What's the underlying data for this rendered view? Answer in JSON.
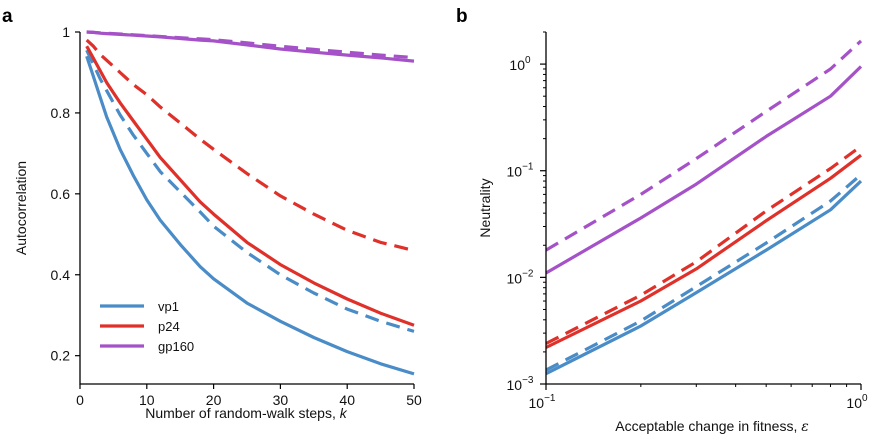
{
  "colors": {
    "vp1": "#4a8cc7",
    "p24": "#e0302a",
    "gp160": "#a552c8"
  },
  "chart_data": [
    {
      "panel": "a",
      "type": "line",
      "xlabel": "Number of random-walk steps, ",
      "xlabel_italic": "k",
      "ylabel": "Autocorrelation",
      "xlim": [
        0,
        50
      ],
      "ylim": [
        0.13,
        1.0
      ],
      "xticks": [
        0,
        10,
        20,
        30,
        40,
        50
      ],
      "xtick_labels": [
        "0",
        "10",
        "20",
        "30",
        "40",
        "50"
      ],
      "yticks": [
        0.2,
        0.4,
        0.6,
        0.8,
        1.0
      ],
      "ytick_labels": [
        "0.2",
        "0.4",
        "0.6",
        "0.8",
        "1"
      ],
      "legend_position": "bottom-left",
      "x": [
        1,
        2,
        3,
        4,
        5,
        6,
        8,
        10,
        12,
        15,
        18,
        20,
        25,
        30,
        35,
        40,
        45,
        50
      ],
      "series": [
        {
          "name": "vp1",
          "color_key": "vp1",
          "dash": false,
          "values": [
            0.94,
            0.89,
            0.84,
            0.79,
            0.75,
            0.71,
            0.645,
            0.585,
            0.535,
            0.475,
            0.42,
            0.39,
            0.33,
            0.285,
            0.245,
            0.21,
            0.18,
            0.155
          ]
        },
        {
          "name": "vp1-dashed",
          "color_key": "vp1",
          "dash": true,
          "values": [
            0.955,
            0.92,
            0.885,
            0.855,
            0.825,
            0.795,
            0.745,
            0.7,
            0.655,
            0.605,
            0.555,
            0.52,
            0.455,
            0.4,
            0.355,
            0.315,
            0.285,
            0.26
          ]
        },
        {
          "name": "p24",
          "color_key": "p24",
          "dash": false,
          "values": [
            0.965,
            0.935,
            0.905,
            0.875,
            0.85,
            0.825,
            0.78,
            0.735,
            0.69,
            0.635,
            0.58,
            0.55,
            0.48,
            0.425,
            0.38,
            0.34,
            0.305,
            0.275
          ]
        },
        {
          "name": "p24-dashed",
          "color_key": "p24",
          "dash": true,
          "values": [
            0.98,
            0.965,
            0.945,
            0.93,
            0.915,
            0.9,
            0.87,
            0.845,
            0.815,
            0.775,
            0.735,
            0.71,
            0.65,
            0.595,
            0.55,
            0.51,
            0.48,
            0.46
          ]
        },
        {
          "name": "gp160",
          "color_key": "gp160",
          "dash": false,
          "values": [
            1.0,
            0.999,
            0.997,
            0.996,
            0.995,
            0.994,
            0.992,
            0.99,
            0.988,
            0.984,
            0.98,
            0.978,
            0.968,
            0.958,
            0.95,
            0.943,
            0.936,
            0.928
          ]
        },
        {
          "name": "gp160-dashed",
          "color_key": "gp160",
          "dash": true,
          "values": [
            1.0,
            0.999,
            0.998,
            0.997,
            0.996,
            0.995,
            0.993,
            0.991,
            0.989,
            0.986,
            0.983,
            0.981,
            0.973,
            0.965,
            0.957,
            0.95,
            0.943,
            0.937
          ]
        }
      ],
      "legend": [
        {
          "label": "vp1",
          "color_key": "vp1"
        },
        {
          "label": "p24",
          "color_key": "p24"
        },
        {
          "label": "gp160",
          "color_key": "gp160"
        }
      ]
    },
    {
      "panel": "b",
      "type": "line",
      "xlabel": "Acceptable change in fitness, ",
      "xlabel_symbol": "ε",
      "ylabel": "Neutrality",
      "x_scale": "log",
      "y_scale": "log",
      "xlim": [
        0.1,
        1.0
      ],
      "ylim": [
        0.001,
        2.0
      ],
      "xtick_major": [
        {
          "value": 0.1,
          "base": "10",
          "exp": "−1"
        },
        {
          "value": 1.0,
          "base": "10",
          "exp": "0"
        }
      ],
      "ytick_major": [
        {
          "value": 0.001,
          "base": "10",
          "exp": "−3"
        },
        {
          "value": 0.01,
          "base": "10",
          "exp": "−2"
        },
        {
          "value": 0.1,
          "base": "10",
          "exp": "−1"
        },
        {
          "value": 1.0,
          "base": "10",
          "exp": "0"
        }
      ],
      "series": [
        {
          "name": "vp1",
          "color_key": "vp1",
          "dash": false,
          "x": [
            0.1,
            0.2,
            0.3,
            0.5,
            0.8,
            1.0
          ],
          "values": [
            0.00125,
            0.0035,
            0.0072,
            0.018,
            0.043,
            0.08
          ]
        },
        {
          "name": "vp1-dashed",
          "color_key": "vp1",
          "dash": true,
          "x": [
            0.1,
            0.2,
            0.3,
            0.5,
            0.8,
            1.0
          ],
          "values": [
            0.00135,
            0.0039,
            0.0082,
            0.021,
            0.052,
            0.092
          ]
        },
        {
          "name": "p24",
          "color_key": "p24",
          "dash": false,
          "x": [
            0.1,
            0.2,
            0.3,
            0.5,
            0.8,
            1.0
          ],
          "values": [
            0.0022,
            0.006,
            0.012,
            0.034,
            0.085,
            0.14
          ]
        },
        {
          "name": "p24-dashed",
          "color_key": "p24",
          "dash": true,
          "x": [
            0.1,
            0.2,
            0.3,
            0.5,
            0.8,
            1.0
          ],
          "values": [
            0.0024,
            0.0068,
            0.014,
            0.042,
            0.105,
            0.17
          ]
        },
        {
          "name": "gp160",
          "color_key": "gp160",
          "dash": false,
          "x": [
            0.1,
            0.2,
            0.3,
            0.5,
            0.8,
            1.0
          ],
          "values": [
            0.011,
            0.036,
            0.075,
            0.21,
            0.5,
            0.95
          ]
        },
        {
          "name": "gp160-dashed",
          "color_key": "gp160",
          "dash": true,
          "x": [
            0.1,
            0.2,
            0.3,
            0.5,
            0.8,
            1.0
          ],
          "values": [
            0.018,
            0.06,
            0.13,
            0.36,
            0.9,
            1.65
          ]
        }
      ]
    }
  ]
}
